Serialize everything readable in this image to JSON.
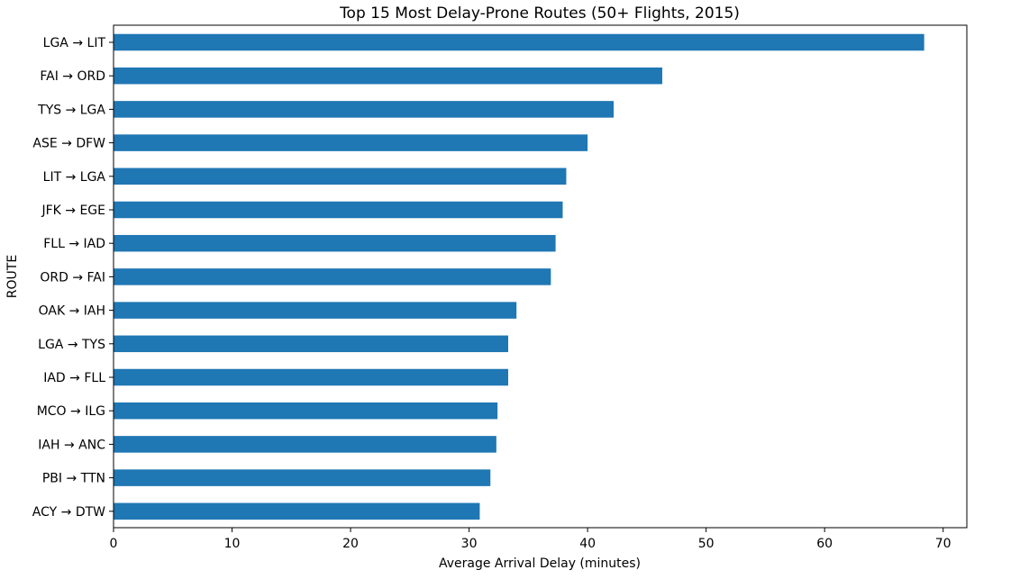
{
  "chart_data": {
    "type": "bar",
    "orientation": "horizontal",
    "title": "Top 15 Most Delay-Prone Routes (50+ Flights, 2015)",
    "xlabel": "Average Arrival Delay (minutes)",
    "ylabel": "ROUTE",
    "xlim": [
      0,
      72
    ],
    "xticks": [
      0,
      10,
      20,
      30,
      40,
      50,
      60,
      70
    ],
    "grid": false,
    "bar_color": "#1f77b4",
    "categories": [
      "LGA → LIT",
      "FAI → ORD",
      "TYS → LGA",
      "ASE → DFW",
      "LIT → LGA",
      "JFK → EGE",
      "FLL → IAD",
      "ORD → FAI",
      "OAK → IAH",
      "LGA → TYS",
      "IAD → FLL",
      "MCO → ILG",
      "IAH → ANC",
      "PBI → TTN",
      "ACY → DTW"
    ],
    "values": [
      68.4,
      46.3,
      42.2,
      40.0,
      38.2,
      37.9,
      37.3,
      36.9,
      34.0,
      33.3,
      33.3,
      32.4,
      32.3,
      31.8,
      30.9
    ]
  }
}
